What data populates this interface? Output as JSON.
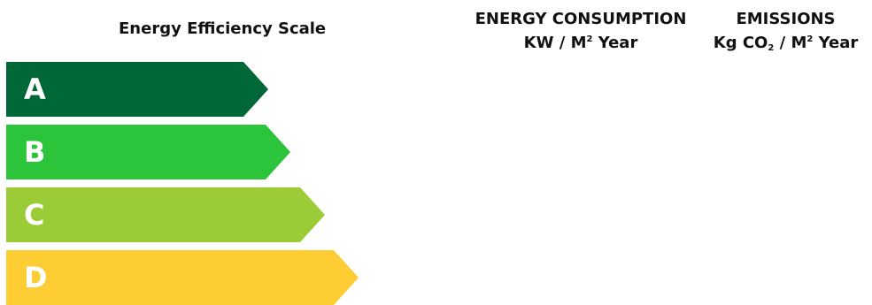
{
  "scale_title": "Energy Efficiency Scale",
  "energy_header": {
    "line1": "ENERGY CONSUMPTION",
    "line2_main": "KW / M",
    "line2_sup": "2",
    "line2_tail": " Year"
  },
  "emissions_header": {
    "line1": "EMISSIONS",
    "line2_a": "Kg CO",
    "line2_sub": "2",
    "line2_b": " / M",
    "line2_sup": "2",
    "line2_tail": " Year"
  },
  "ratings": [
    {
      "letter": "A",
      "color": "#006837"
    },
    {
      "letter": "B",
      "color": "#2cc43a"
    },
    {
      "letter": "C",
      "color": "#9bcb36"
    },
    {
      "letter": "D",
      "color": "#fdcd33"
    }
  ]
}
